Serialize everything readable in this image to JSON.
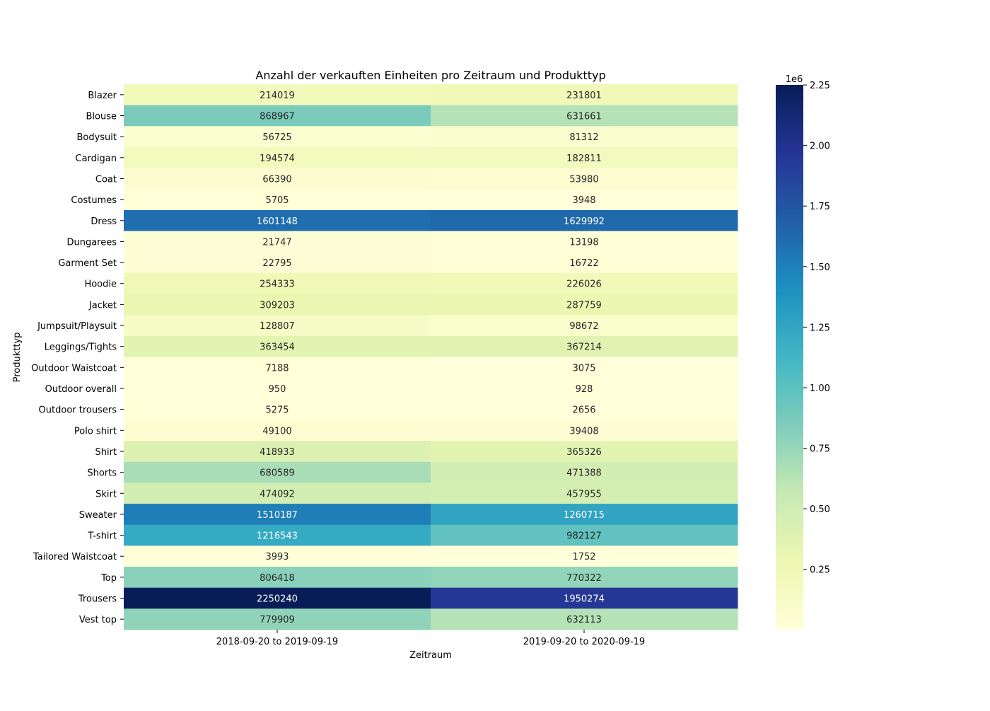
{
  "chart_data": {
    "type": "heatmap",
    "title": "Anzahl der verkauften Einheiten pro Zeitraum und Produkttyp",
    "xlabel": "Zeitraum",
    "ylabel": "Produkttyp",
    "columns": [
      "2018-09-20 to 2019-09-19",
      "2019-09-20 to 2020-09-19"
    ],
    "rows": [
      "Blazer",
      "Blouse",
      "Bodysuit",
      "Cardigan",
      "Coat",
      "Costumes",
      "Dress",
      "Dungarees",
      "Garment Set",
      "Hoodie",
      "Jacket",
      "Jumpsuit/Playsuit",
      "Leggings/Tights",
      "Outdoor Waistcoat",
      "Outdoor overall",
      "Outdoor trousers",
      "Polo shirt",
      "Shirt",
      "Shorts",
      "Skirt",
      "Sweater",
      "T-shirt",
      "Tailored Waistcoat",
      "Top",
      "Trousers",
      "Vest top"
    ],
    "values": [
      [
        214019,
        231801
      ],
      [
        868967,
        631661
      ],
      [
        56725,
        81312
      ],
      [
        194574,
        182811
      ],
      [
        66390,
        53980
      ],
      [
        5705,
        3948
      ],
      [
        1601148,
        1629992
      ],
      [
        21747,
        13198
      ],
      [
        22795,
        16722
      ],
      [
        254333,
        226026
      ],
      [
        309203,
        287759
      ],
      [
        128807,
        98672
      ],
      [
        363454,
        367214
      ],
      [
        7188,
        3075
      ],
      [
        950,
        928
      ],
      [
        5275,
        2656
      ],
      [
        49100,
        39408
      ],
      [
        418933,
        365326
      ],
      [
        680589,
        471388
      ],
      [
        474092,
        457955
      ],
      [
        1510187,
        1260715
      ],
      [
        1216543,
        982127
      ],
      [
        3993,
        1752
      ],
      [
        806418,
        770322
      ],
      [
        2250240,
        1950274
      ],
      [
        779909,
        632113
      ]
    ],
    "colormap": "YlGnBu",
    "vmin": 928,
    "vmax": 2250240,
    "colorbar": {
      "ticks": [
        0.25,
        0.5,
        0.75,
        1.0,
        1.25,
        1.5,
        1.75,
        2.0,
        2.25
      ],
      "tick_labels": [
        "0.25",
        "0.50",
        "0.75",
        "1.00",
        "1.25",
        "1.50",
        "1.75",
        "2.00",
        "2.25"
      ],
      "offset_label": "1e6",
      "scale": 1000000
    }
  }
}
